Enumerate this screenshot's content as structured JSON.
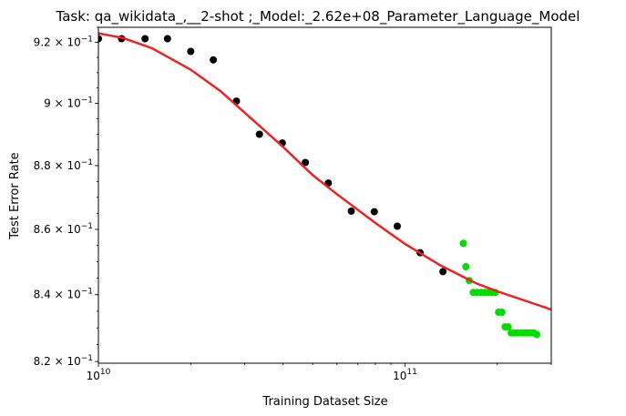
{
  "chart_data": {
    "type": "scatter",
    "title": "Task: qa_wikidata_,__2-shot ;_Model:_2.62e+08_Parameter_Language_Model",
    "xlabel": "Training Dataset Size",
    "ylabel": "Test Error Rate",
    "xscale": "log",
    "yscale": "log",
    "xlim": [
      10000000000.0,
      300000000000.0
    ],
    "ylim": [
      0.8195,
      0.925
    ],
    "grid": false,
    "xticks": [
      {
        "value": 10000000000.0,
        "base": "10",
        "exp": "10"
      },
      {
        "value": 100000000000.0,
        "base": "10",
        "exp": "11"
      }
    ],
    "yticks": [
      {
        "value": 0.82,
        "mant": "8.2",
        "exp": "−1"
      },
      {
        "value": 0.84,
        "mant": "8.4",
        "exp": "−1"
      },
      {
        "value": 0.86,
        "mant": "8.6",
        "exp": "−1"
      },
      {
        "value": 0.88,
        "mant": "8.8",
        "exp": "−1"
      },
      {
        "value": 0.9,
        "mant": "9",
        "exp": "−1"
      },
      {
        "value": 0.92,
        "mant": "9.2",
        "exp": "−1"
      }
    ],
    "series": [
      {
        "kind": "scatter",
        "color": "#000000",
        "points": [
          [
            10000000000.0,
            0.9212
          ],
          [
            11900000000.0,
            0.9212
          ],
          [
            14200000000.0,
            0.9212
          ],
          [
            16800000000.0,
            0.9212
          ],
          [
            20000000000.0,
            0.917
          ],
          [
            23700000000.0,
            0.9142
          ],
          [
            28200000000.0,
            0.9007
          ],
          [
            33500000000.0,
            0.89
          ],
          [
            39800000000.0,
            0.8872
          ],
          [
            47300000000.0,
            0.881
          ],
          [
            56200000000.0,
            0.8745
          ],
          [
            66800000000.0,
            0.8657
          ],
          [
            79400000000.0,
            0.8655
          ],
          [
            94400000000.0,
            0.861
          ],
          [
            112000000000.0,
            0.8528
          ],
          [
            133000000000.0,
            0.847
          ]
        ]
      },
      {
        "kind": "scatter",
        "color": "#00dd00",
        "points": [
          [
            155000000000.0,
            0.8557
          ],
          [
            158000000000.0,
            0.8485
          ],
          [
            162000000000.0,
            0.8443
          ],
          [
            167000000000.0,
            0.8407
          ],
          [
            172000000000.0,
            0.8407
          ],
          [
            177000000000.0,
            0.8407
          ],
          [
            182000000000.0,
            0.8407
          ],
          [
            187000000000.0,
            0.8407
          ],
          [
            192000000000.0,
            0.8407
          ],
          [
            197000000000.0,
            0.8407
          ],
          [
            202000000000.0,
            0.8347
          ],
          [
            207000000000.0,
            0.8347
          ],
          [
            212000000000.0,
            0.8303
          ],
          [
            217000000000.0,
            0.8303
          ],
          [
            222000000000.0,
            0.8285
          ],
          [
            227000000000.0,
            0.8285
          ],
          [
            233000000000.0,
            0.8285
          ],
          [
            239000000000.0,
            0.8285
          ],
          [
            245000000000.0,
            0.8285
          ],
          [
            251000000000.0,
            0.8285
          ],
          [
            257000000000.0,
            0.8285
          ],
          [
            263000000000.0,
            0.8285
          ],
          [
            269000000000.0,
            0.828
          ]
        ]
      },
      {
        "kind": "line",
        "color": "#ee2222",
        "points": [
          [
            10000000000.0,
            0.923
          ],
          [
            12000000000.0,
            0.9215
          ],
          [
            15000000000.0,
            0.918
          ],
          [
            20000000000.0,
            0.911
          ],
          [
            25000000000.0,
            0.904
          ],
          [
            30000000000.0,
            0.897
          ],
          [
            40000000000.0,
            0.886
          ],
          [
            50000000000.0,
            0.877
          ],
          [
            60000000000.0,
            0.871
          ],
          [
            80000000000.0,
            0.862
          ],
          [
            100000000000.0,
            0.8555
          ],
          [
            130000000000.0,
            0.849
          ],
          [
            170000000000.0,
            0.8435
          ],
          [
            200000000000.0,
            0.841
          ],
          [
            250000000000.0,
            0.838
          ],
          [
            300000000000.0,
            0.8355
          ]
        ]
      }
    ]
  }
}
